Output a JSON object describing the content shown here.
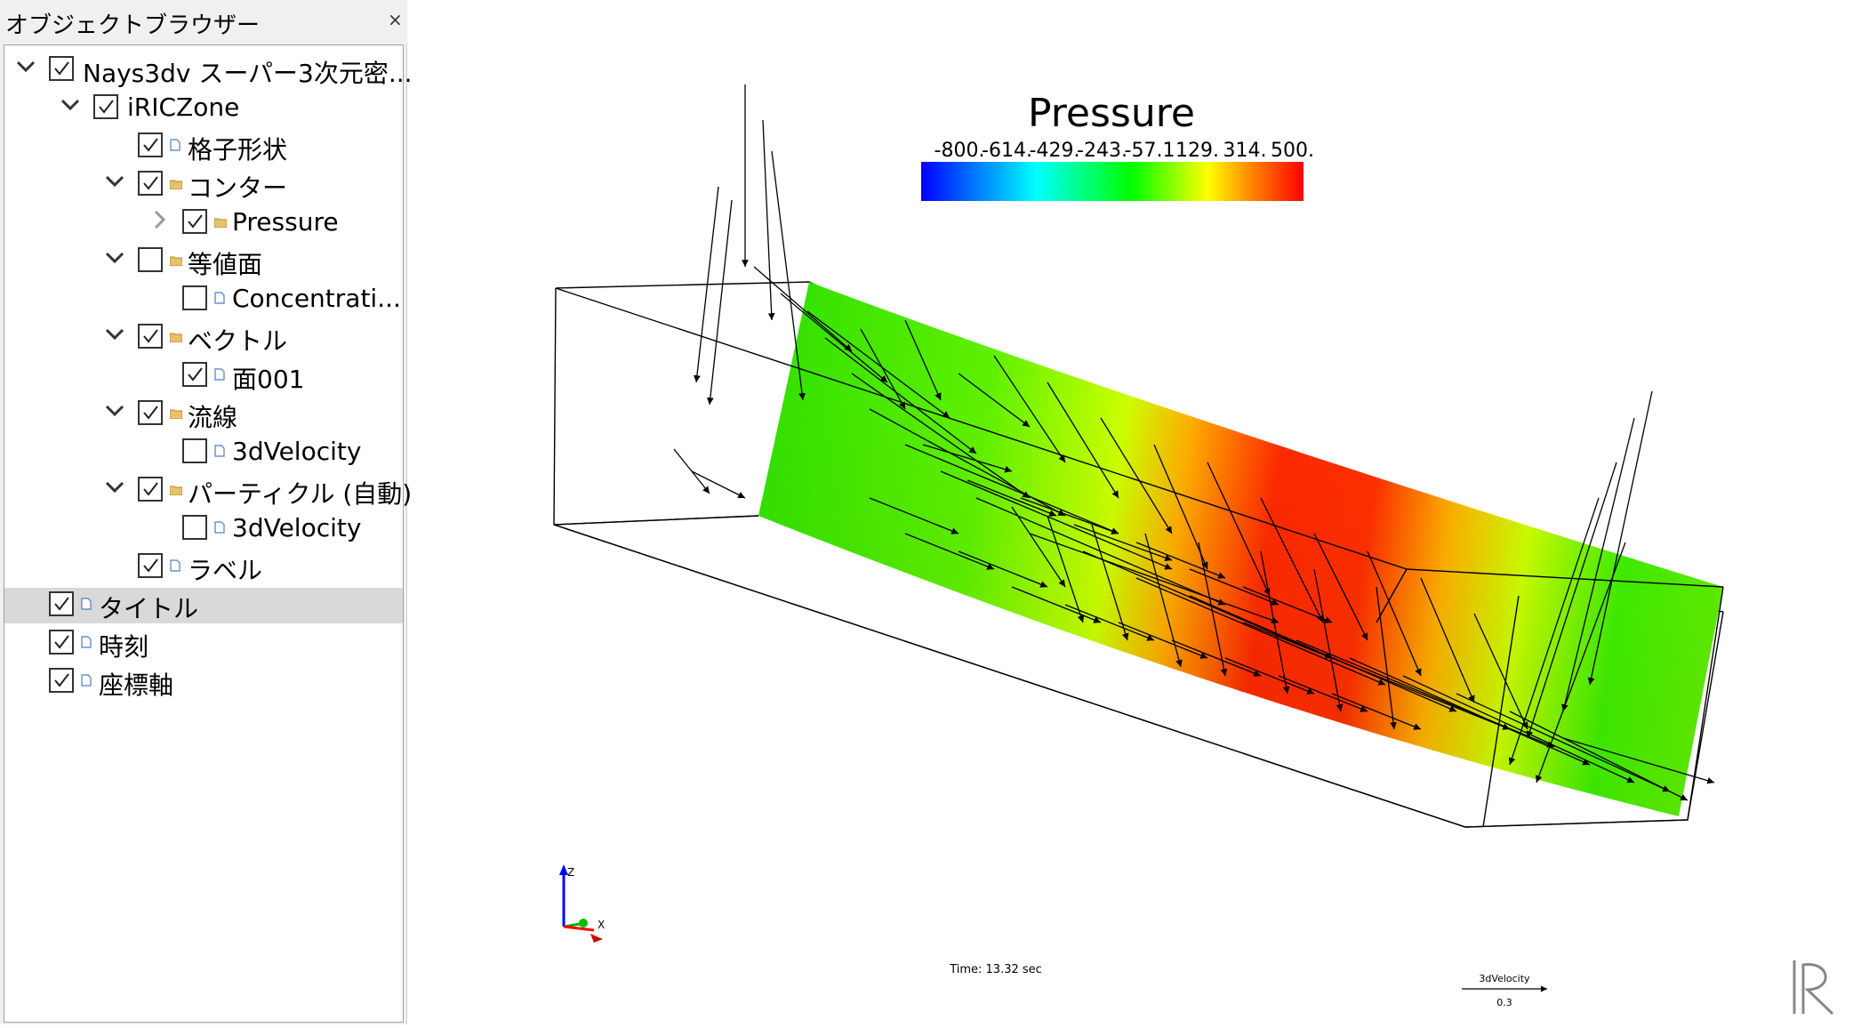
{
  "panel": {
    "title": "オブジェクトブラウザー",
    "close": "×",
    "items": [
      {
        "label": "Nays3dv スーパー3次元密...",
        "checked": true
      },
      {
        "label": "iRICZone",
        "checked": true
      },
      {
        "label": "格子形状",
        "checked": true
      },
      {
        "label": "コンター",
        "checked": true
      },
      {
        "label": "Pressure",
        "checked": true
      },
      {
        "label": "等値面",
        "checked": false
      },
      {
        "label": "Concentrati...",
        "checked": false
      },
      {
        "label": "ベクトル",
        "checked": true
      },
      {
        "label": "面001",
        "checked": true
      },
      {
        "label": "流線",
        "checked": true
      },
      {
        "label": "3dVelocity",
        "checked": false
      },
      {
        "label": "パーティクル (自動)",
        "checked": true
      },
      {
        "label": "3dVelocity",
        "checked": false
      },
      {
        "label": "ラベル",
        "checked": true
      },
      {
        "label": "タイトル",
        "checked": true
      },
      {
        "label": "時刻",
        "checked": true
      },
      {
        "label": "座標軸",
        "checked": true
      }
    ]
  },
  "legend": {
    "title": "Pressure",
    "ticks": [
      "-800.",
      "-614.",
      "-429.",
      "-243.",
      "-57.1",
      "129.",
      "314.",
      "500."
    ]
  },
  "axes": {
    "z": "Z",
    "x": "X"
  },
  "time_label": "Time: 13.32 sec",
  "vector_scale": {
    "name": "3dVelocity",
    "value": "0.3"
  },
  "logo": "iR",
  "colors": {
    "low": "#0000ff",
    "mid": "#00ff00",
    "high": "#ff0000",
    "selection": "#d9d9d9"
  }
}
